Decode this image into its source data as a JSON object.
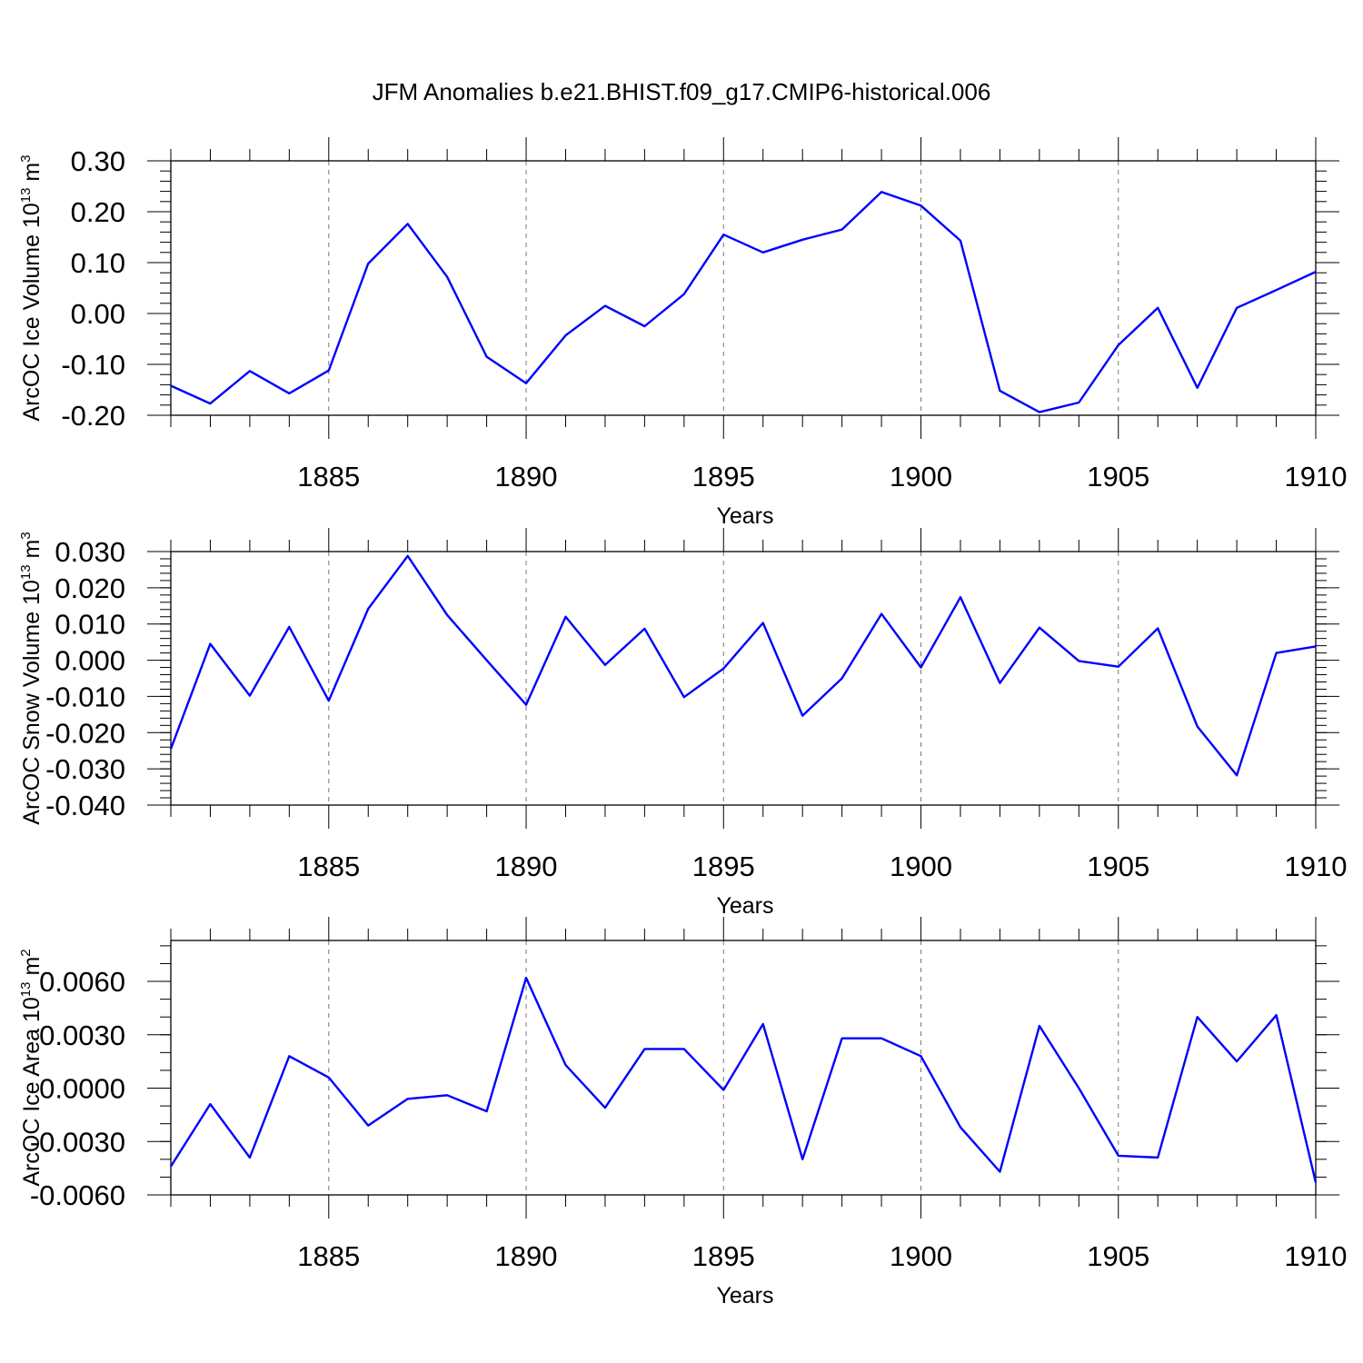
{
  "figure": {
    "title": "JFM Anomalies b.e21.BHIST.f09_g17.CMIP6-historical.006"
  },
  "colors": {
    "line": "#0000ff",
    "grid": "#777777",
    "axis": "#000000"
  },
  "chart_data": [
    {
      "type": "line",
      "title": "JFM Anomalies b.e21.BHIST.f09_g17.CMIP6-historical.006",
      "ylabel": "ArcOC Ice Volume 10",
      "ylabel_exp": "13",
      "ylabel_unit": " m",
      "ylabel_unit_exp": "3",
      "xlabel": "Years",
      "xlim": [
        1881,
        1910
      ],
      "ylim": [
        -0.2,
        0.3
      ],
      "x_major_ticks": [
        1885,
        1890,
        1895,
        1900,
        1905,
        1910
      ],
      "x_tick_labels": [
        "1885",
        "1890",
        "1895",
        "1900",
        "1905",
        "1910"
      ],
      "y_major_ticks": [
        0.3,
        0.2,
        0.1,
        0.0,
        -0.1,
        -0.2
      ],
      "y_tick_labels": [
        "0.30",
        "0.20",
        "0.10",
        "0.00",
        "-0.10",
        "-0.20"
      ],
      "y_minor_step": 0.02,
      "grid": "vertical dashed at major x ticks",
      "series": [
        {
          "name": "ArcOC Ice Volume",
          "x": [
            1881,
            1882,
            1883,
            1884,
            1885,
            1886,
            1887,
            1888,
            1889,
            1890,
            1891,
            1892,
            1893,
            1894,
            1895,
            1896,
            1897,
            1898,
            1899,
            1900,
            1901,
            1902,
            1903,
            1904,
            1905,
            1906,
            1907,
            1908,
            1909,
            1910
          ],
          "values": [
            -0.142,
            -0.177,
            -0.113,
            -0.157,
            -0.112,
            0.098,
            0.176,
            0.072,
            -0.085,
            -0.137,
            -0.043,
            0.015,
            -0.025,
            0.038,
            0.155,
            0.12,
            0.145,
            0.165,
            0.239,
            0.212,
            0.143,
            -0.152,
            -0.194,
            -0.175,
            -0.062,
            0.011,
            -0.146,
            0.011,
            0.046,
            0.082
          ]
        }
      ]
    },
    {
      "type": "line",
      "ylabel": "ArcOC Snow Volume 10",
      "ylabel_exp": "13",
      "ylabel_unit": " m",
      "ylabel_unit_exp": "3",
      "xlabel": "Years",
      "xlim": [
        1881,
        1910
      ],
      "ylim": [
        -0.04,
        0.03
      ],
      "x_major_ticks": [
        1885,
        1890,
        1895,
        1900,
        1905,
        1910
      ],
      "x_tick_labels": [
        "1885",
        "1890",
        "1895",
        "1900",
        "1905",
        "1910"
      ],
      "y_major_ticks": [
        0.03,
        0.02,
        0.01,
        0.0,
        -0.01,
        -0.02,
        -0.03,
        -0.04
      ],
      "y_tick_labels": [
        "0.030",
        "0.020",
        "0.010",
        "0.000",
        "-0.010",
        "-0.020",
        "-0.030",
        "-0.040"
      ],
      "y_minor_step": 0.002,
      "grid": "vertical dashed at major x ticks",
      "series": [
        {
          "name": "ArcOC Snow Volume",
          "x": [
            1881,
            1882,
            1883,
            1884,
            1885,
            1886,
            1887,
            1888,
            1889,
            1890,
            1891,
            1892,
            1893,
            1894,
            1895,
            1896,
            1897,
            1898,
            1899,
            1900,
            1901,
            1902,
            1903,
            1904,
            1905,
            1906,
            1907,
            1908,
            1909,
            1910
          ],
          "values": [
            -0.0245,
            0.0045,
            -0.0098,
            0.0092,
            -0.0112,
            0.0142,
            0.0288,
            0.0125,
            0.0,
            -0.0123,
            0.012,
            -0.0013,
            0.0087,
            -0.0102,
            -0.0023,
            0.0103,
            -0.0153,
            -0.005,
            0.0128,
            -0.002,
            0.0174,
            -0.0063,
            0.009,
            -0.0002,
            -0.0018,
            0.0088,
            -0.0183,
            -0.0318,
            0.002,
            0.0038
          ]
        }
      ]
    },
    {
      "type": "line",
      "ylabel": "ArcOC Ice Area 10",
      "ylabel_exp": "13",
      "ylabel_unit": " m",
      "ylabel_unit_exp": "2",
      "xlabel": "Years",
      "xlim": [
        1881,
        1910
      ],
      "ylim": [
        -0.006,
        0.0083
      ],
      "x_major_ticks": [
        1885,
        1890,
        1895,
        1900,
        1905,
        1910
      ],
      "x_tick_labels": [
        "1885",
        "1890",
        "1895",
        "1900",
        "1905",
        "1910"
      ],
      "y_major_ticks": [
        0.006,
        0.003,
        0.0,
        -0.003,
        -0.006
      ],
      "y_tick_labels": [
        "0.0060",
        "0.0030",
        "0.0000",
        "-0.0030",
        "-0.0060"
      ],
      "y_minor_step": 0.001,
      "grid": "vertical dashed at major x ticks",
      "series": [
        {
          "name": "ArcOC Ice Area",
          "x": [
            1881,
            1882,
            1883,
            1884,
            1885,
            1886,
            1887,
            1888,
            1889,
            1890,
            1891,
            1892,
            1893,
            1894,
            1895,
            1896,
            1897,
            1898,
            1899,
            1900,
            1901,
            1902,
            1903,
            1904,
            1905,
            1906,
            1907,
            1908,
            1909,
            1910
          ],
          "values": [
            -0.0044,
            -0.0009,
            -0.0039,
            0.0018,
            0.0006,
            -0.0021,
            -0.0006,
            -0.0004,
            -0.0013,
            0.0062,
            0.0013,
            -0.0011,
            0.0022,
            0.0022,
            -0.0001,
            0.0036,
            -0.004,
            0.0028,
            0.0028,
            0.0018,
            -0.0022,
            -0.0047,
            0.0035,
            0.0,
            -0.0038,
            -0.0039,
            0.004,
            0.0015,
            0.0041,
            -0.0053
          ]
        }
      ]
    }
  ]
}
